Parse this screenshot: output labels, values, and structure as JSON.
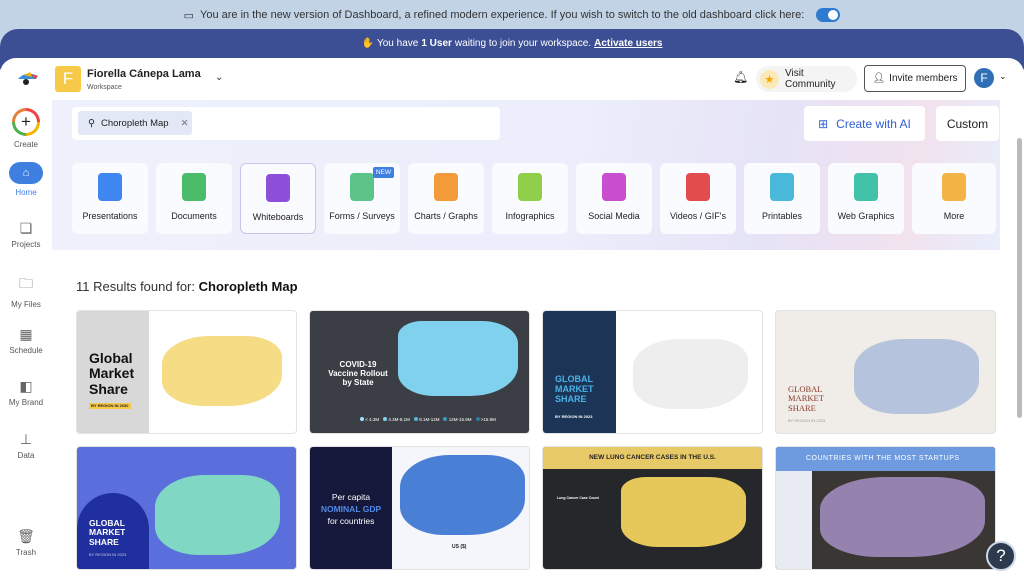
{
  "banner": {
    "text": "You are in the new version of Dashboard, a refined modern experience. If you wish to switch to the old dashboard click here:",
    "toggle_on": true
  },
  "notice": {
    "prefix": "You have",
    "count": "1 User",
    "suffix": "waiting to join your workspace.",
    "link": "Activate users"
  },
  "header": {
    "workspace_initial": "F",
    "workspace_name": "Fiorella Cánepa Lama",
    "workspace_label": "Workspace",
    "visit_community": "Visit Community",
    "invite_members": "Invite members",
    "avatar_initial": "F"
  },
  "sidebar": {
    "items": [
      {
        "label": "Create"
      },
      {
        "label": "Home"
      },
      {
        "label": "Projects"
      },
      {
        "label": "My Files"
      },
      {
        "label": "Schedule"
      },
      {
        "label": "My Brand"
      },
      {
        "label": "Data"
      },
      {
        "label": "Trash"
      }
    ]
  },
  "search": {
    "chip": "Choropleth Map"
  },
  "actions": {
    "create_ai": "Create with AI",
    "custom": "Custom"
  },
  "categories": [
    {
      "label": "Presentations",
      "color": "#3f86f0"
    },
    {
      "label": "Documents",
      "color": "#4cbb6a"
    },
    {
      "label": "Whiteboards",
      "color": "#8e4fd8"
    },
    {
      "label": "Forms / Surveys",
      "color": "#5cc489",
      "badge": "NEW"
    },
    {
      "label": "Charts / Graphs",
      "color": "#f39a3a"
    },
    {
      "label": "Infographics",
      "color": "#8fcf4a"
    },
    {
      "label": "Social Media",
      "color": "#c94fd0"
    },
    {
      "label": "Videos / GIF's",
      "color": "#e24c4c"
    },
    {
      "label": "Printables",
      "color": "#4ab8d8"
    },
    {
      "label": "Web Graphics",
      "color": "#42c2a8"
    },
    {
      "label": "More",
      "color": "#f2b444"
    }
  ],
  "results": {
    "prefix": "11 Results found for:",
    "query": "Choropleth Map"
  },
  "templates": [
    {
      "title": "Global Market Share",
      "subtitle": "BY REGION IN 2030"
    },
    {
      "title": "COVID-19 Vaccine Rollout by State",
      "legend": [
        "< 4.3M",
        "4.3M-8.1M",
        "8.1M-12M",
        "12M-15.9M",
        ">15.9M"
      ]
    },
    {
      "title": "GLOBAL MARKET SHARE",
      "subtitle": "BY REGION IN 2023"
    },
    {
      "title": "GLOBAL MARKET SHARE",
      "subtitle": "BY REGION IN 2023"
    },
    {
      "title": "GLOBAL MARKET SHARE",
      "subtitle": "BY REGION IN 2023"
    },
    {
      "title_1": "Per capita",
      "title_2": "NOMINAL GDP",
      "title_3": "for countries",
      "legend_title": "US ($)"
    },
    {
      "title": "NEW LUNG CANCER CASES IN THE U.S.",
      "legend_title": "Lung Cancer Case Count"
    },
    {
      "title": "COUNTRIES WITH THE MOST STARTUPS"
    }
  ],
  "help": "?"
}
